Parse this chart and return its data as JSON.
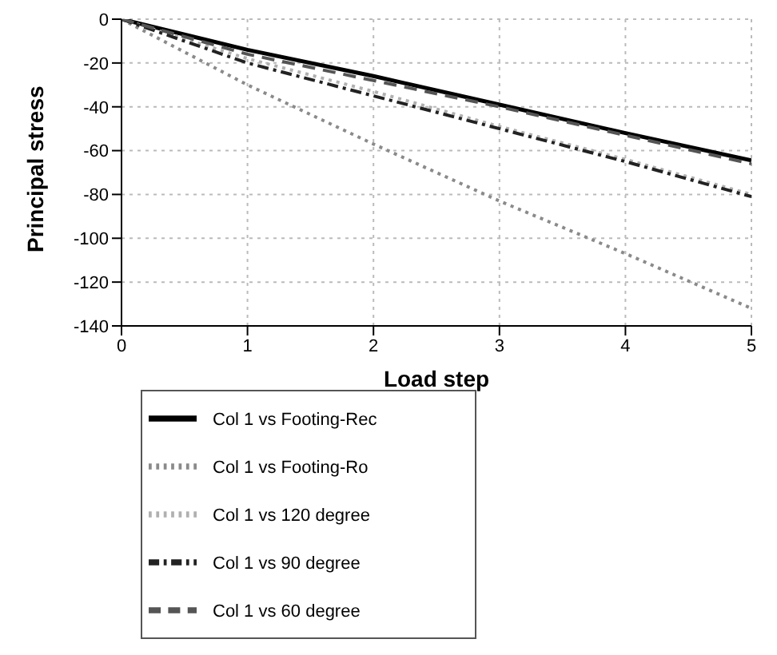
{
  "chart_data": {
    "type": "line",
    "xlabel": "Load step",
    "ylabel": "Principal stress",
    "x": [
      0,
      1,
      2,
      3,
      4,
      5
    ],
    "series": [
      {
        "name": "Col 1 vs Footing-Rec",
        "color": "#000000",
        "line_style": "solid",
        "values": [
          0,
          -14,
          -26,
          -39,
          -52,
          -64.5
        ]
      },
      {
        "name": "Col 1 vs Footing-Ro",
        "color": "#8a8a8a",
        "line_style": "dotted",
        "values": [
          0,
          -30,
          -57,
          -83,
          -107,
          -132
        ]
      },
      {
        "name": "Col 1 vs 120 degree",
        "color": "#b0b0b0",
        "line_style": "dotted",
        "values": [
          0,
          -18,
          -33,
          -49,
          -64,
          -80
        ]
      },
      {
        "name": "Col 1 vs 90 degree",
        "color": "#222222",
        "line_style": "dashdot",
        "values": [
          0,
          -20,
          -35,
          -50,
          -65,
          -81
        ]
      },
      {
        "name": "Col 1 vs 60 degree",
        "color": "#555555",
        "line_style": "dashed",
        "values": [
          0,
          -16,
          -28,
          -40,
          -53,
          -66
        ]
      }
    ],
    "xlim": [
      0,
      5
    ],
    "xticks": [
      0,
      1,
      2,
      3,
      4,
      5
    ],
    "ylim": [
      -140,
      0
    ],
    "yticks": [
      -140,
      -120,
      -100,
      -80,
      -60,
      -40,
      -20,
      0
    ],
    "grid": true,
    "legend": "bottom left",
    "marker": "none"
  }
}
